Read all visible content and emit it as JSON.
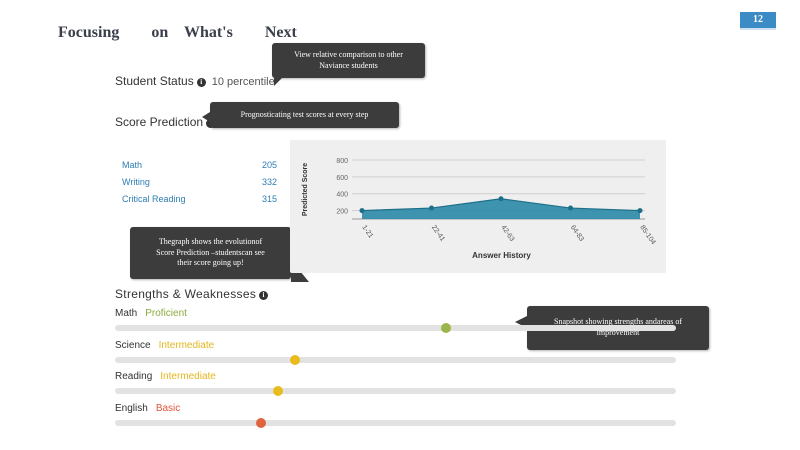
{
  "slide": {
    "title": "Focusing        on    What's        Next",
    "page_number": "12"
  },
  "student_status": {
    "label": "Student Status",
    "value": "10 percentile"
  },
  "score_prediction": {
    "label": "Score Prediction"
  },
  "callouts": {
    "comparison": [
      "View relative   comparison   to other",
      "Naviance   students"
    ],
    "prognosticating": [
      "Prognosticating    test   scores  at  every  step"
    ],
    "graph": [
      "Thegraph    shows    the   evolutionof",
      "Score  Prediction   –studentscan     see",
      "their   score   going   up!"
    ],
    "snapshot": [
      "Snapshot   showing   strengths    andareas  of",
      "improvement"
    ]
  },
  "subjects": [
    {
      "name": "Math",
      "score": "205"
    },
    {
      "name": "Writing",
      "score": "332"
    },
    {
      "name": "Critical Reading",
      "score": "315"
    }
  ],
  "chart_data": {
    "type": "area",
    "ylabel": "Predicted Score",
    "xlabel": "Answer History",
    "yticks": [
      "200",
      "400",
      "600",
      "800"
    ],
    "ylim": [
      100,
      800
    ],
    "categories": [
      "1-21",
      "22-41",
      "42-63",
      "64-83",
      "85-104"
    ],
    "x": [
      0,
      1,
      2,
      3,
      4
    ],
    "values": [
      200,
      230,
      340,
      230,
      200
    ],
    "color": "#2a8aa6",
    "grid": true
  },
  "strengths": {
    "title": "Strengths & Weaknesses",
    "items": [
      {
        "subject": "Math",
        "level": "Proficient",
        "level_color": "#8aab3a",
        "dot_color": "#9bb54a",
        "position": 0.59
      },
      {
        "subject": "Science",
        "level": "Intermediate",
        "level_color": "#e4b61e",
        "dot_color": "#e9bb1c",
        "position": 0.32
      },
      {
        "subject": "Reading",
        "level": "Intermediate",
        "level_color": "#e4b61e",
        "dot_color": "#e9bb1c",
        "position": 0.29
      },
      {
        "subject": "English",
        "level": "Basic",
        "level_color": "#e0573a",
        "dot_color": "#e0653f",
        "position": 0.26
      }
    ]
  }
}
